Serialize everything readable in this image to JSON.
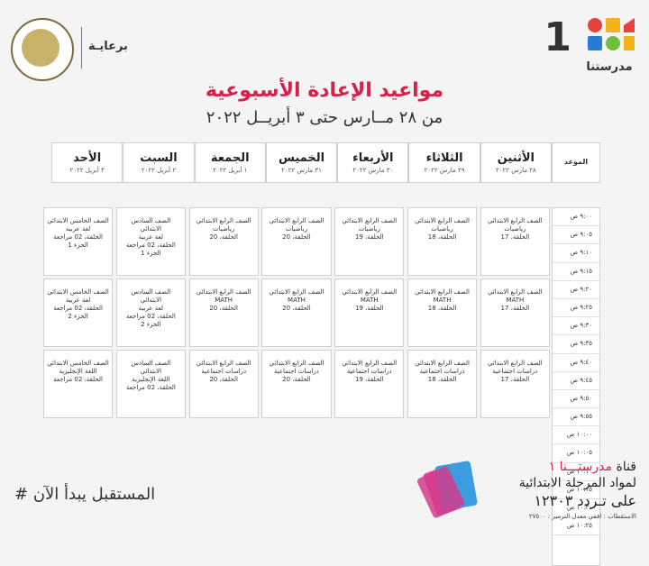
{
  "header": {
    "brand_number": "1",
    "brand_name": "مدرستنا",
    "sponsor_label": "برعايـة",
    "title": "مواعيد الإعادة الأسبوعية",
    "subtitle": "من ٢٨ مــارس حتى ٣ أبريــل ٢٠٢٢"
  },
  "table": {
    "time_header": "الموعد",
    "days": [
      {
        "day": "الأثنين",
        "date": "٢٨ مارس ٢٠٢٢"
      },
      {
        "day": "الثلاثاء",
        "date": "٢٩ مارس ٢٠٢٢"
      },
      {
        "day": "الأربعاء",
        "date": "٣٠ مارس ٢٠٢٢"
      },
      {
        "day": "الخميس",
        "date": "٣١ مارس ٢٠٢٢"
      },
      {
        "day": "الجمعة",
        "date": "١ أبريل ٢٠٢٢"
      },
      {
        "day": "السبت",
        "date": "٢ أبريل ٢٠٢٢"
      },
      {
        "day": "الأحد",
        "date": "٣ أبريل ٢٠٢٢"
      }
    ],
    "times": [
      "٩:٠٠ ص",
      "٩:٠٥ ص",
      "٩:١٠ ص",
      "٩:١٥ ص",
      "٩:٢٠ ص",
      "٩:٢٥ ص",
      "٩:٣٠ ص",
      "٩:٣٥ ص",
      "٩:٤٠ ص",
      "٩:٤٥ ص",
      "٩:٥٠ ص",
      "٩:٥٥ ص",
      "١٠:٠٠ ص",
      "١٠:٠٥ ص",
      "١٠:١٠ ص",
      "١٠:١٥ ص",
      "١٠:٢٠ ص",
      "١٠:٢٥ ص"
    ],
    "blocks": [
      [
        "الصف الرابع الابتدائي\nرياضيات\nالحلقة، 17",
        "الصف الرابع الابتدائي\nرياضيات\nالحلقة، 18",
        "الصف الرابع الابتدائي\nرياضيات\nالحلقة، 19",
        "الصف الرابع الابتدائي\nرياضيات\nالحلقة، 20",
        "الصف الرابع الابتدائي\nرياضيات\nالحلقة، 20",
        "الصف السادس الابتدائي\nلغة عربية\nالحلقة، 02 مراجعة\nالجزء 1",
        "الصف الخامس الابتدائي\nلغة عربية\nالحلقة، 02 مراجعة\nالجزء 1"
      ],
      [
        "الصف الرابع الابتدائي\nMATH\nالحلقة، 17",
        "الصف الرابع الابتدائي\nMATH\nالحلقة، 18",
        "الصف الرابع الابتدائي\nMATH\nالحلقة، 19",
        "الصف الرابع الابتدائي\nMATH\nالحلقة، 20",
        "الصف الرابع الابتدائي\nMATH\nالحلقة، 20",
        "الصف السادس الابتدائي\nلغة عربية\nالحلقة، 02 مراجعة\nالجزء 2",
        "الصف الخامس الابتدائي\nلغة عربية\nالحلقة، 02 مراجعة\nالجزء 2"
      ],
      [
        "الصف الرابع الابتدائي\nدراسات اجتماعية\nالحلقة، 17",
        "الصف الرابع الابتدائي\nدراسات اجتماعية\nالحلقة، 18",
        "الصف الرابع الابتدائي\nدراسات اجتماعية\nالحلقة، 19",
        "الصف الرابع الابتدائي\nدراسات اجتماعية\nالحلقة، 20",
        "الصف الرابع الابتدائي\nدراسات اجتماعية\nالحلقة، 20",
        "الصف السادس الابتدائي\nاللغة الإنجليزية\nالحلقة، 02 مراجعة",
        "الصف الخامس الابتدائي\nاللغة الإنجليزية\nالحلقة، 02 مراجعة"
      ]
    ]
  },
  "footer": {
    "slogan": "# المستقبل يبدأ الآن",
    "channel_l1_prefix": "قناة ",
    "channel_l1_name": "مدرستـــنا ١",
    "channel_l2": "لمواد المرحلة الابتدائية",
    "channel_l3": "على تـردد ١٢٣٠٣",
    "channel_l4": "الاستقطاب : افقي معدل الترميز : ٢٧٥٠٠"
  },
  "colors": {
    "accent": "#d6224a"
  }
}
